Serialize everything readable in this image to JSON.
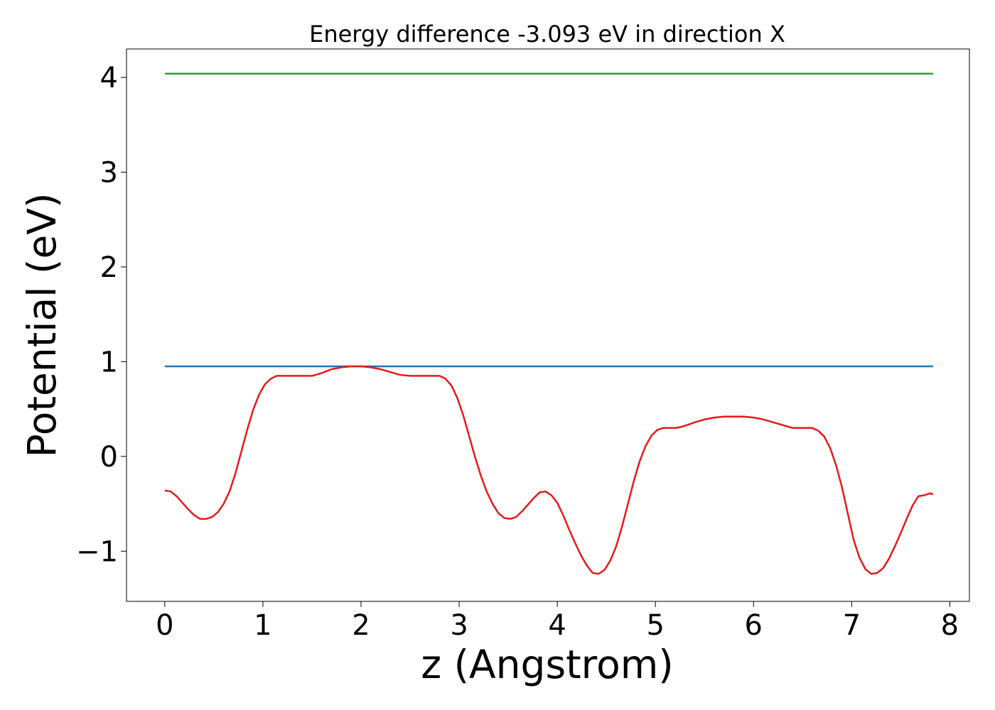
{
  "chart_data": {
    "type": "line",
    "title": "Energy difference -3.093 eV in direction X",
    "xlabel": "z (Angstrom)",
    "ylabel": "Potential (eV)",
    "xlim": [
      -0.39,
      8.2
    ],
    "ylim": [
      -1.53,
      4.3
    ],
    "xticks": [
      0,
      1,
      2,
      3,
      4,
      5,
      6,
      7,
      8
    ],
    "xtick_labels": [
      "0",
      "1",
      "2",
      "3",
      "4",
      "5",
      "6",
      "7",
      "8"
    ],
    "yticks": [
      -1,
      0,
      1,
      2,
      3,
      4
    ],
    "ytick_labels": [
      "−1",
      "0",
      "1",
      "2",
      "3",
      "4"
    ],
    "grid": false,
    "series": [
      {
        "color": "#2ca02c",
        "x": [
          0,
          7.83
        ],
        "y": [
          4.04,
          4.04
        ]
      },
      {
        "color": "#1f77b4",
        "x": [
          0,
          7.83
        ],
        "y": [
          0.95,
          0.95
        ]
      },
      {
        "color": "#e41a1c",
        "x": [
          0,
          0.06,
          0.12,
          0.18,
          0.24,
          0.3,
          0.36,
          0.42,
          0.48,
          0.54,
          0.6,
          0.66,
          0.72,
          0.78,
          0.84,
          0.9,
          0.96,
          1.02,
          1.08,
          1.14,
          1.2,
          1.3,
          1.4,
          1.5,
          1.6,
          1.7,
          1.8,
          1.9,
          2.0,
          2.1,
          2.2,
          2.3,
          2.4,
          2.5,
          2.6,
          2.7,
          2.8,
          2.86,
          2.92,
          2.98,
          3.04,
          3.1,
          3.16,
          3.22,
          3.28,
          3.34,
          3.4,
          3.46,
          3.52,
          3.58,
          3.64,
          3.7,
          3.76,
          3.82,
          3.88,
          3.94,
          4.0,
          4.06,
          4.12,
          4.18,
          4.24,
          4.3,
          4.36,
          4.42,
          4.48,
          4.54,
          4.6,
          4.66,
          4.72,
          4.78,
          4.84,
          4.9,
          4.96,
          5.02,
          5.08,
          5.14,
          5.2,
          5.26,
          5.32,
          5.4,
          5.5,
          5.6,
          5.7,
          5.8,
          5.9,
          6.0,
          6.1,
          6.2,
          6.3,
          6.4,
          6.5,
          6.6,
          6.66,
          6.72,
          6.78,
          6.84,
          6.9,
          6.96,
          7.02,
          7.08,
          7.14,
          7.2,
          7.26,
          7.32,
          7.38,
          7.44,
          7.5,
          7.56,
          7.62,
          7.68,
          7.74,
          7.8,
          7.83
        ],
        "y": [
          -0.36,
          -0.37,
          -0.42,
          -0.49,
          -0.56,
          -0.62,
          -0.66,
          -0.66,
          -0.64,
          -0.59,
          -0.5,
          -0.37,
          -0.18,
          0.05,
          0.28,
          0.49,
          0.65,
          0.76,
          0.82,
          0.85,
          0.85,
          0.85,
          0.85,
          0.85,
          0.88,
          0.92,
          0.94,
          0.95,
          0.95,
          0.94,
          0.92,
          0.89,
          0.86,
          0.85,
          0.85,
          0.85,
          0.85,
          0.82,
          0.75,
          0.62,
          0.44,
          0.22,
          0.0,
          -0.2,
          -0.37,
          -0.5,
          -0.6,
          -0.65,
          -0.66,
          -0.64,
          -0.58,
          -0.51,
          -0.44,
          -0.38,
          -0.37,
          -0.41,
          -0.49,
          -0.62,
          -0.77,
          -0.91,
          -1.04,
          -1.15,
          -1.23,
          -1.24,
          -1.2,
          -1.1,
          -0.95,
          -0.74,
          -0.5,
          -0.26,
          -0.05,
          0.11,
          0.22,
          0.28,
          0.3,
          0.3,
          0.3,
          0.31,
          0.33,
          0.36,
          0.39,
          0.41,
          0.42,
          0.42,
          0.42,
          0.41,
          0.39,
          0.36,
          0.33,
          0.3,
          0.3,
          0.3,
          0.27,
          0.21,
          0.09,
          -0.09,
          -0.32,
          -0.6,
          -0.88,
          -1.07,
          -1.19,
          -1.24,
          -1.23,
          -1.18,
          -1.08,
          -0.95,
          -0.81,
          -0.66,
          -0.52,
          -0.42,
          -0.41,
          -0.39,
          -0.4
        ]
      }
    ]
  }
}
